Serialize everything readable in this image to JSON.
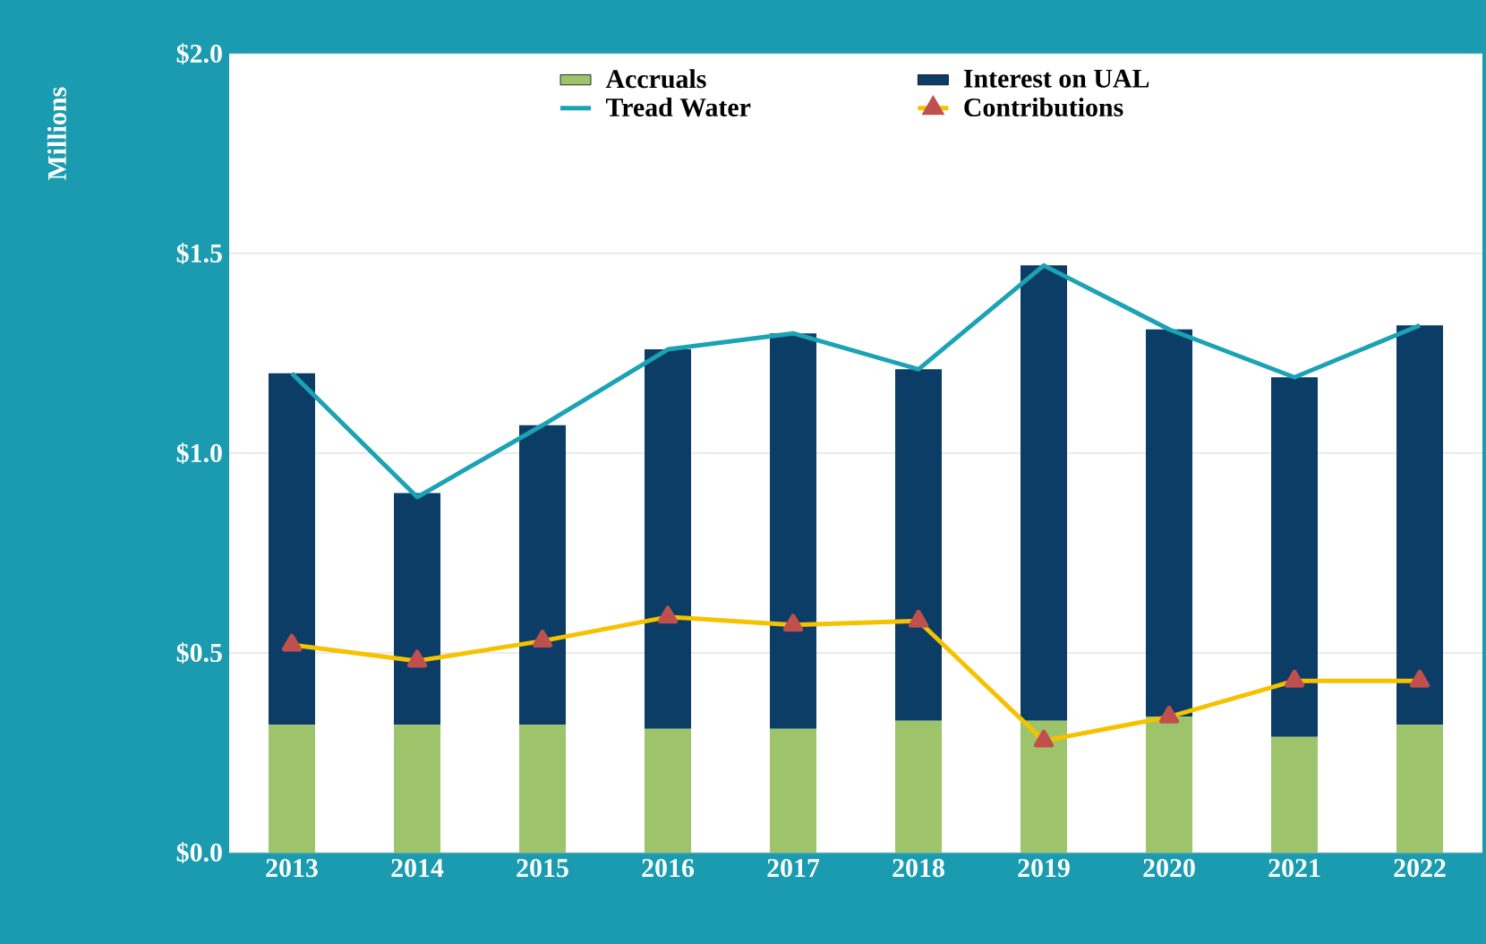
{
  "chart_data": {
    "type": "bar",
    "stacked": true,
    "ylabel": "Millions",
    "categories": [
      "2013",
      "2014",
      "2015",
      "2016",
      "2017",
      "2018",
      "2019",
      "2020",
      "2021",
      "2022"
    ],
    "series": [
      {
        "name": "Accruals",
        "color": "#9dc46b",
        "values": [
          0.32,
          0.32,
          0.32,
          0.31,
          0.31,
          0.33,
          0.33,
          0.34,
          0.29,
          0.32
        ]
      },
      {
        "name": "Interest on UAL",
        "color": "#0b3d66",
        "values": [
          0.88,
          0.58,
          0.75,
          0.95,
          0.99,
          0.88,
          1.14,
          0.97,
          0.9,
          1.0
        ]
      },
      {
        "name": "Tread Water",
        "type": "line",
        "color": "#1ba3b5",
        "marker": "none",
        "values": [
          1.2,
          0.89,
          1.07,
          1.26,
          1.3,
          1.21,
          1.47,
          1.31,
          1.19,
          1.32
        ]
      },
      {
        "name": "Contributions",
        "type": "line",
        "color": "#f5c200",
        "marker": "triangle",
        "values": [
          0.52,
          0.48,
          0.53,
          0.59,
          0.57,
          0.58,
          0.28,
          0.34,
          0.43,
          0.43
        ]
      }
    ],
    "ylim": [
      0,
      2
    ],
    "yticks": [
      {
        "value": 0,
        "label": "$0.0"
      },
      {
        "value": 0.5,
        "label": "$0.5"
      },
      {
        "value": 1,
        "label": "$1.0"
      },
      {
        "value": 1.5,
        "label": "$1.5"
      },
      {
        "value": 2,
        "label": "$2.0"
      }
    ],
    "grid": "y",
    "legend": "top"
  }
}
